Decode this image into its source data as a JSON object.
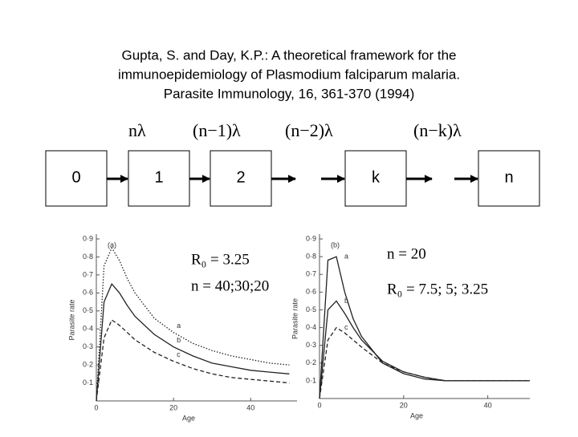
{
  "header": {
    "title_lines": [
      "Gupta, S. and Day, K.P.: A theoretical framework for the",
      "immunoepidemiology of Plasmodium falciparum malaria.",
      "Parasite Immunology, 16, 361-370 (1994)"
    ]
  },
  "diagram": {
    "nodes": [
      {
        "label": "0"
      },
      {
        "label": "1"
      },
      {
        "label": "2"
      },
      {
        "label": "k"
      },
      {
        "label": "n"
      }
    ],
    "rates": [
      "nλ",
      "(n−1)λ",
      "(n−2)λ",
      "(n−k)λ"
    ]
  },
  "chart_data": [
    {
      "type": "line",
      "panel": "(a)",
      "x_label": "Age",
      "y_label": "Parasite rate",
      "annotations": [
        "R₀ = 3.25",
        "n = 40;30;20"
      ],
      "x": [
        0,
        2,
        4,
        6,
        8,
        10,
        15,
        20,
        25,
        30,
        35,
        40,
        45,
        50
      ],
      "xlim": [
        0,
        52
      ],
      "xticks": [
        0,
        20,
        40
      ],
      "ylim": [
        0,
        0.9
      ],
      "yticks": [
        {
          "value": 0.1,
          "label": "0·1"
        },
        {
          "value": 0.2,
          "label": "0·2"
        },
        {
          "value": 0.3,
          "label": "0·3"
        },
        {
          "value": 0.4,
          "label": "0·4"
        },
        {
          "value": 0.5,
          "label": "0·5"
        },
        {
          "value": 0.6,
          "label": "0·6"
        },
        {
          "value": 0.7,
          "label": "0·7"
        },
        {
          "value": 0.8,
          "label": "0·8"
        },
        {
          "value": 0.9,
          "label": "0·9"
        }
      ],
      "series": [
        {
          "name": "a",
          "color": "#222",
          "dash": "dotted",
          "values": [
            0,
            0.75,
            0.85,
            0.78,
            0.68,
            0.6,
            0.46,
            0.38,
            0.32,
            0.28,
            0.25,
            0.23,
            0.21,
            0.2
          ]
        },
        {
          "name": "b",
          "color": "#222",
          "dash": "solid",
          "values": [
            0,
            0.55,
            0.65,
            0.6,
            0.53,
            0.47,
            0.37,
            0.3,
            0.25,
            0.21,
            0.19,
            0.17,
            0.16,
            0.15
          ]
        },
        {
          "name": "c",
          "color": "#222",
          "dash": "dashed",
          "values": [
            0,
            0.35,
            0.45,
            0.42,
            0.38,
            0.34,
            0.27,
            0.22,
            0.18,
            0.15,
            0.13,
            0.12,
            0.11,
            0.1
          ]
        }
      ]
    },
    {
      "type": "line",
      "panel": "(b)",
      "x_label": "Age",
      "y_label": "Parasite rate",
      "annotations": [
        "n = 20",
        "R₀ = 7.5;   5;   3.25"
      ],
      "x": [
        0,
        2,
        4,
        6,
        8,
        10,
        15,
        20,
        25,
        30,
        35,
        40,
        45,
        50
      ],
      "xlim": [
        0,
        50
      ],
      "xticks": [
        0,
        20,
        40
      ],
      "ylim": [
        0,
        0.9
      ],
      "yticks": [
        {
          "value": 0.1,
          "label": "0·1"
        },
        {
          "value": 0.2,
          "label": "0·2"
        },
        {
          "value": 0.3,
          "label": "0·3"
        },
        {
          "value": 0.4,
          "label": "0·4"
        },
        {
          "value": 0.5,
          "label": "0·5"
        },
        {
          "value": 0.6,
          "label": "0·6"
        },
        {
          "value": 0.7,
          "label": "0·7"
        },
        {
          "value": 0.8,
          "label": "0·8"
        },
        {
          "value": 0.9,
          "label": "0·9"
        }
      ],
      "series": [
        {
          "name": "a",
          "color": "#222",
          "dash": "solid",
          "values": [
            0,
            0.78,
            0.8,
            0.6,
            0.45,
            0.35,
            0.2,
            0.14,
            0.11,
            0.1,
            0.1,
            0.1,
            0.1,
            0.1
          ]
        },
        {
          "name": "b",
          "color": "#222",
          "dash": "solid",
          "values": [
            0,
            0.5,
            0.55,
            0.48,
            0.4,
            0.33,
            0.21,
            0.15,
            0.12,
            0.1,
            0.1,
            0.1,
            0.1,
            0.1
          ]
        },
        {
          "name": "c",
          "color": "#222",
          "dash": "dashed",
          "values": [
            0,
            0.33,
            0.4,
            0.37,
            0.33,
            0.29,
            0.2,
            0.15,
            0.12,
            0.1,
            0.1,
            0.1,
            0.1,
            0.1
          ]
        }
      ]
    }
  ]
}
